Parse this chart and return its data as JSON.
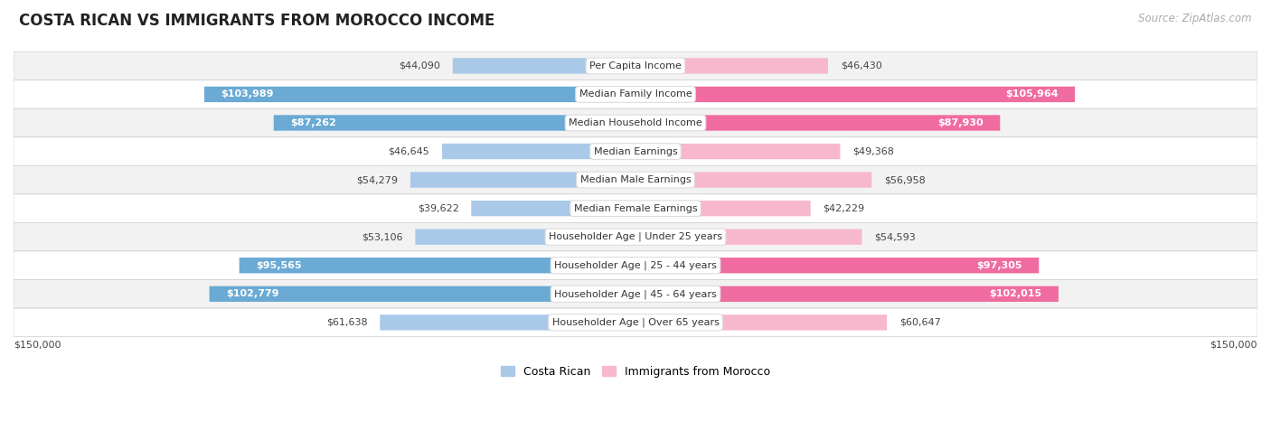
{
  "title": "Costa Rican vs Immigrants from Morocco Income",
  "source": "Source: ZipAtlas.com",
  "categories": [
    "Per Capita Income",
    "Median Family Income",
    "Median Household Income",
    "Median Earnings",
    "Median Male Earnings",
    "Median Female Earnings",
    "Householder Age | Under 25 years",
    "Householder Age | 25 - 44 years",
    "Householder Age | 45 - 64 years",
    "Householder Age | Over 65 years"
  ],
  "costa_rican": [
    44090,
    103989,
    87262,
    46645,
    54279,
    39622,
    53106,
    95565,
    102779,
    61638
  ],
  "morocco": [
    46430,
    105964,
    87930,
    49368,
    56958,
    42229,
    54593,
    97305,
    102015,
    60647
  ],
  "costa_rican_labels": [
    "$44,090",
    "$103,989",
    "$87,262",
    "$46,645",
    "$54,279",
    "$39,622",
    "$53,106",
    "$95,565",
    "$102,779",
    "$61,638"
  ],
  "morocco_labels": [
    "$46,430",
    "$105,964",
    "$87,930",
    "$49,368",
    "$56,958",
    "$42,229",
    "$54,593",
    "$97,305",
    "$102,015",
    "$60,647"
  ],
  "costa_rican_color_light": "#aac9e8",
  "costa_rican_color_dark": "#6aaad4",
  "morocco_color_light": "#f7b8ce",
  "morocco_color_dark": "#f06ca0",
  "inside_threshold": 70000,
  "background_color": "#ffffff",
  "row_bg_odd": "#f2f2f2",
  "row_bg_even": "#ffffff",
  "max_value": 150000,
  "xlabel_left": "$150,000",
  "xlabel_right": "$150,000",
  "legend_costa_rican": "Costa Rican",
  "legend_morocco": "Immigrants from Morocco",
  "title_fontsize": 12,
  "source_fontsize": 8.5,
  "label_fontsize": 8,
  "category_fontsize": 8,
  "legend_fontsize": 9,
  "bar_height": 0.55
}
